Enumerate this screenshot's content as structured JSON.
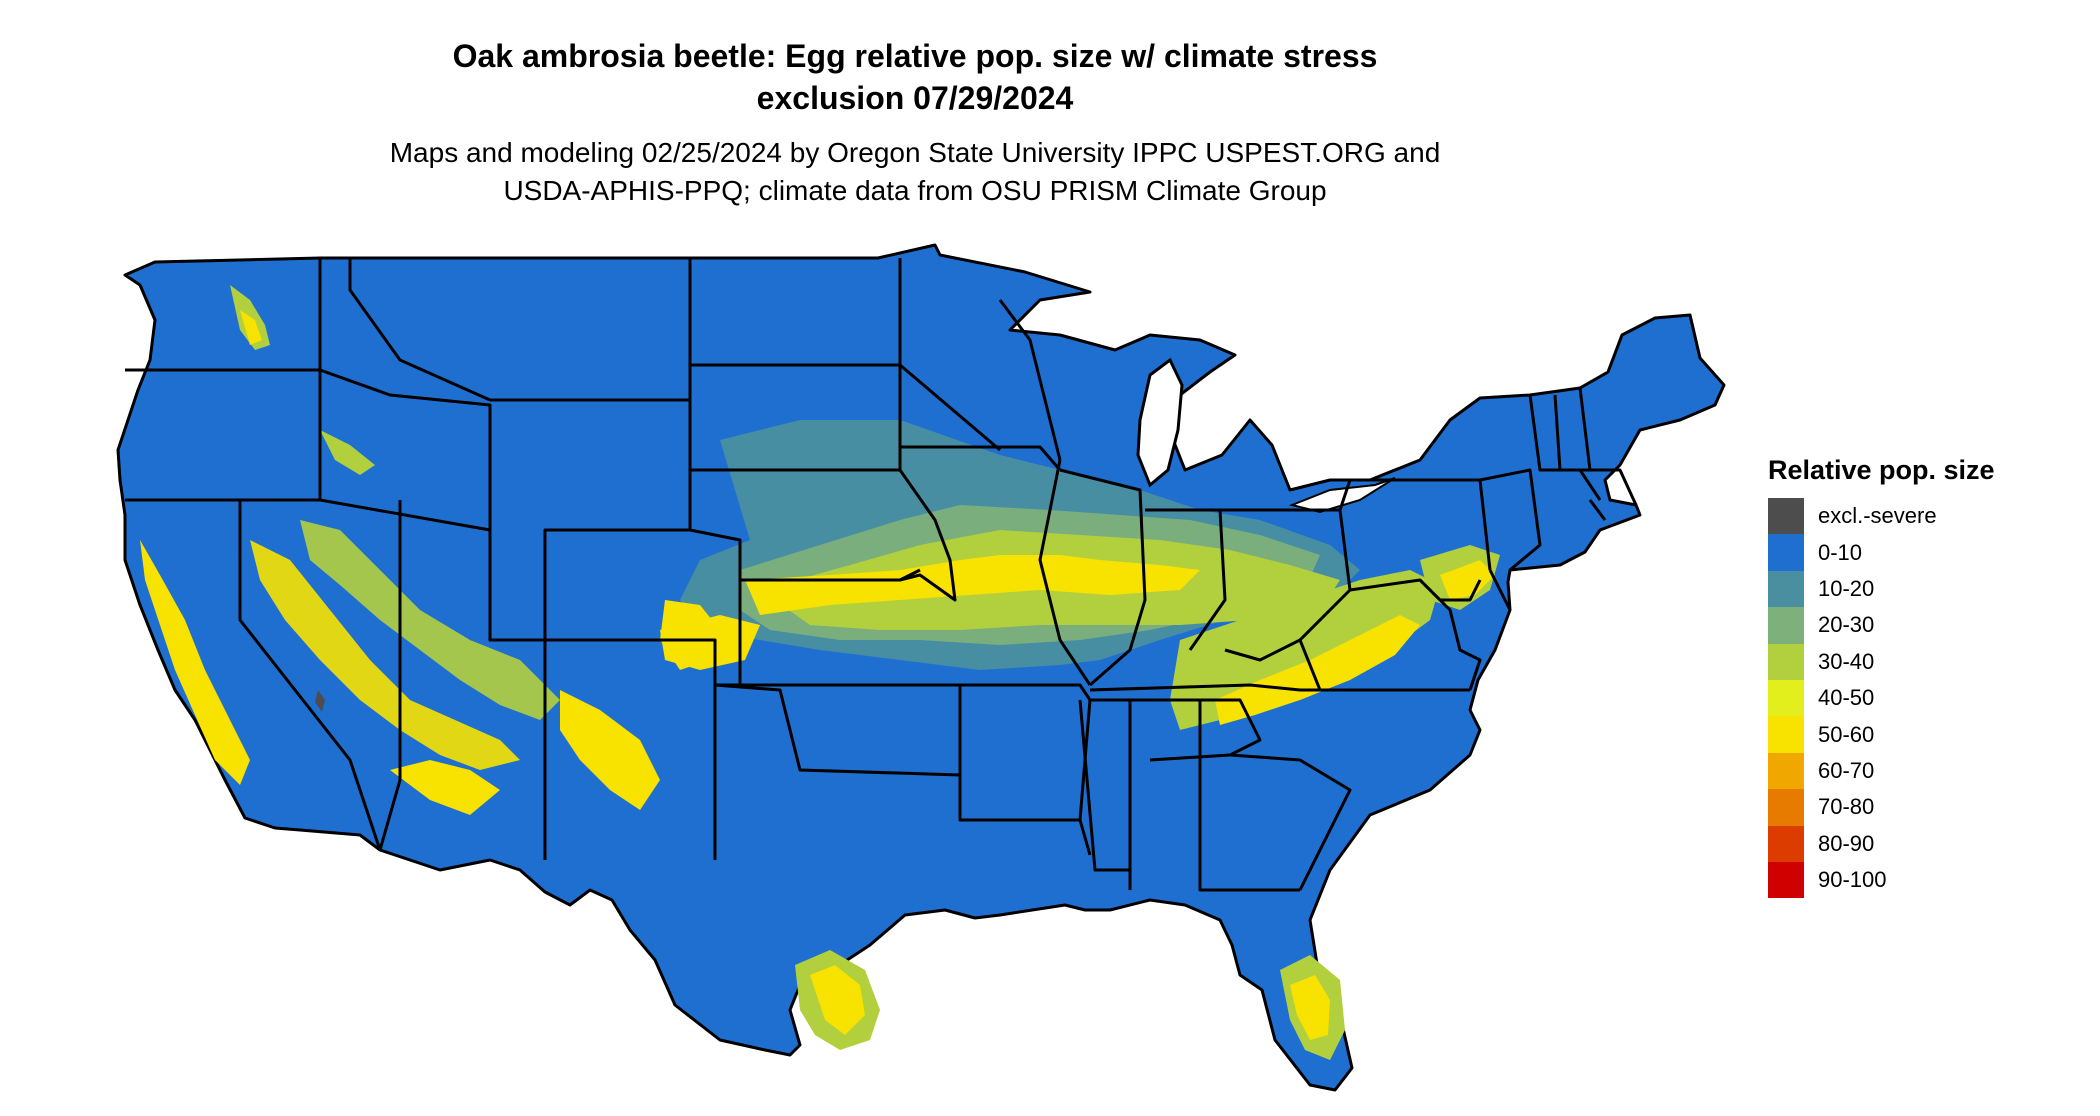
{
  "title": {
    "line1": "Oak ambrosia beetle: Egg relative pop. size w/ climate stress",
    "line2": "exclusion 07/29/2024"
  },
  "subtitle": {
    "line1": "Maps and modeling 02/25/2024 by Oregon State University IPPC USPEST.ORG and",
    "line2": "USDA-APHIS-PPQ; climate data from OSU PRISM Climate Group"
  },
  "map": {
    "region": "Contiguous United States",
    "base_category": "0-10",
    "border_color": "#000000"
  },
  "legend": {
    "title": "Relative pop. size",
    "items": [
      {
        "label": "excl.-severe",
        "color": "#4d4d4d"
      },
      {
        "label": "0-10",
        "color": "#1f6fd1"
      },
      {
        "label": "10-20",
        "color": "#4a8fa0"
      },
      {
        "label": "20-30",
        "color": "#7db07a"
      },
      {
        "label": "30-40",
        "color": "#b2cf3e"
      },
      {
        "label": "40-50",
        "color": "#e3ef1c"
      },
      {
        "label": "50-60",
        "color": "#f7e200"
      },
      {
        "label": "60-70",
        "color": "#f0a800"
      },
      {
        "label": "70-80",
        "color": "#e77b00"
      },
      {
        "label": "80-90",
        "color": "#dc3c00"
      },
      {
        "label": "90-100",
        "color": "#d10000"
      }
    ]
  }
}
